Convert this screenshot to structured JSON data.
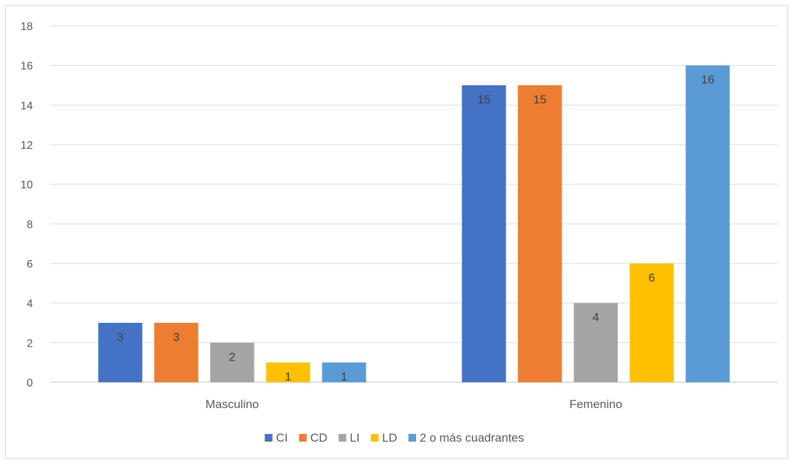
{
  "chart_data": {
    "type": "bar",
    "categories": [
      "Masculino",
      "Femenino"
    ],
    "series": [
      {
        "name": "CI",
        "color": "#4472C4",
        "values": [
          3,
          15
        ]
      },
      {
        "name": "CD",
        "color": "#ED7D31",
        "values": [
          3,
          15
        ]
      },
      {
        "name": "LI",
        "color": "#A5A5A5",
        "values": [
          2,
          4
        ]
      },
      {
        "name": "LD",
        "color": "#FFC000",
        "values": [
          1,
          6
        ]
      },
      {
        "name": "2 o más cuadrantes",
        "color": "#5B9BD5",
        "values": [
          1,
          16
        ]
      }
    ],
    "ylim": [
      0,
      18
    ],
    "yticks": [
      0,
      2,
      4,
      6,
      8,
      10,
      12,
      14,
      16,
      18
    ],
    "grid": true,
    "legend_position": "bottom",
    "data_labels": "inside-end",
    "title": "",
    "xlabel": "",
    "ylabel": ""
  }
}
